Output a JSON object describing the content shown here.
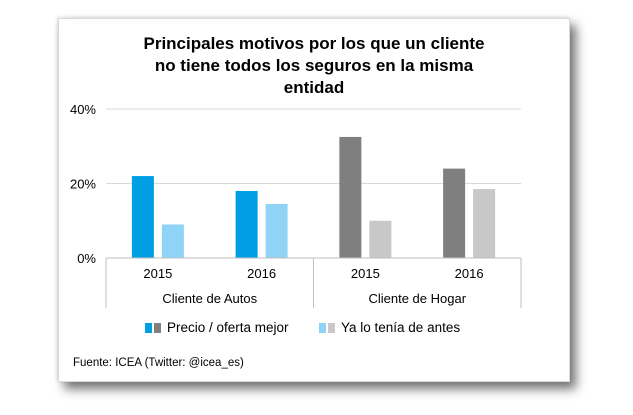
{
  "chart_data": {
    "type": "bar",
    "title_lines": [
      "Principales  motivos por los que un cliente",
      "no tiene todos los seguros en la misma",
      "entidad"
    ],
    "groups": [
      "Cliente de Autos",
      "Cliente de Hogar"
    ],
    "categories": [
      "2015",
      "2016",
      "2015",
      "2016"
    ],
    "category_group": [
      0,
      0,
      1,
      1
    ],
    "yticks": [
      "0%",
      "20%",
      "40%"
    ],
    "ylim": [
      0,
      40
    ],
    "grid": true,
    "series": [
      {
        "name": "Precio / oferta mejor",
        "values": [
          22,
          18,
          32.5,
          24
        ],
        "colors": [
          "#009fe3",
          "#009fe3",
          "#7f7f7f",
          "#7f7f7f"
        ]
      },
      {
        "name": "Ya lo tenía de antes",
        "values": [
          9,
          14.5,
          10,
          18.5
        ],
        "colors": [
          "#8fd3f7",
          "#8fd3f7",
          "#c8c8c8",
          "#c8c8c8"
        ]
      }
    ],
    "legend_position": "bottom",
    "source": "Fuente: ICEA (Twitter:  @icea_es)"
  }
}
